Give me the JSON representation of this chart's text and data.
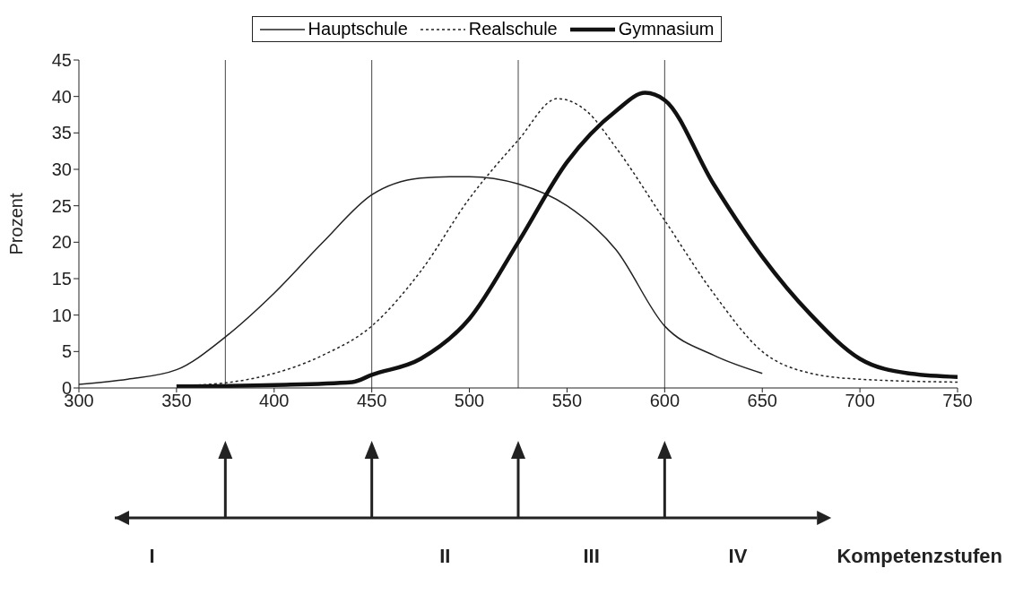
{
  "chart_data": {
    "type": "line",
    "ylabel": "Prozent",
    "xlim": [
      300,
      750
    ],
    "xticks": [
      300,
      350,
      400,
      450,
      500,
      550,
      600,
      650,
      700,
      750
    ],
    "ylim": [
      0,
      45
    ],
    "yticks": [
      0,
      5,
      10,
      15,
      20,
      25,
      30,
      35,
      40,
      45
    ],
    "grid": false,
    "legend": "top",
    "marker": "none",
    "series": [
      {
        "name": "Hauptschule",
        "color": "#222222",
        "line_style": "solid",
        "x": [
          300,
          325,
          350,
          375,
          400,
          425,
          450,
          475,
          490,
          500,
          525,
          550,
          575,
          600,
          625,
          650
        ],
        "values": [
          0.5,
          1.2,
          2.5,
          7,
          13,
          20,
          26.5,
          28.8,
          29,
          29,
          28,
          25,
          19,
          8.5,
          4.5,
          2
        ]
      },
      {
        "name": "Realschule",
        "color": "#222222",
        "line_style": "dotted",
        "x": [
          350,
          375,
          400,
          425,
          450,
          475,
          500,
          525,
          545,
          560,
          575,
          600,
          625,
          650,
          675,
          700,
          750
        ],
        "values": [
          0.3,
          0.7,
          2,
          4.5,
          8.5,
          16,
          26,
          34,
          39.7,
          38,
          33,
          23,
          13,
          5,
          2,
          1.2,
          0.8
        ]
      },
      {
        "name": "Gymnasium",
        "color": "#111111",
        "line_style": "solid",
        "x": [
          350,
          400,
          440,
          450,
          475,
          500,
          525,
          550,
          575,
          590,
          600,
          625,
          650,
          675,
          700,
          725,
          750
        ],
        "values": [
          0.2,
          0.4,
          0.8,
          1.8,
          4,
          9.5,
          20,
          31,
          38,
          40.5,
          39.5,
          28,
          18,
          10,
          4,
          2,
          1.5
        ]
      }
    ],
    "ref_lines": [
      {
        "axis": "x",
        "value": 375
      },
      {
        "axis": "x",
        "value": 450
      },
      {
        "axis": "x",
        "value": 525
      },
      {
        "axis": "x",
        "value": 600
      }
    ],
    "annotations": [
      "I",
      "II",
      "III",
      "IV",
      "Kompetenzstufen"
    ]
  }
}
